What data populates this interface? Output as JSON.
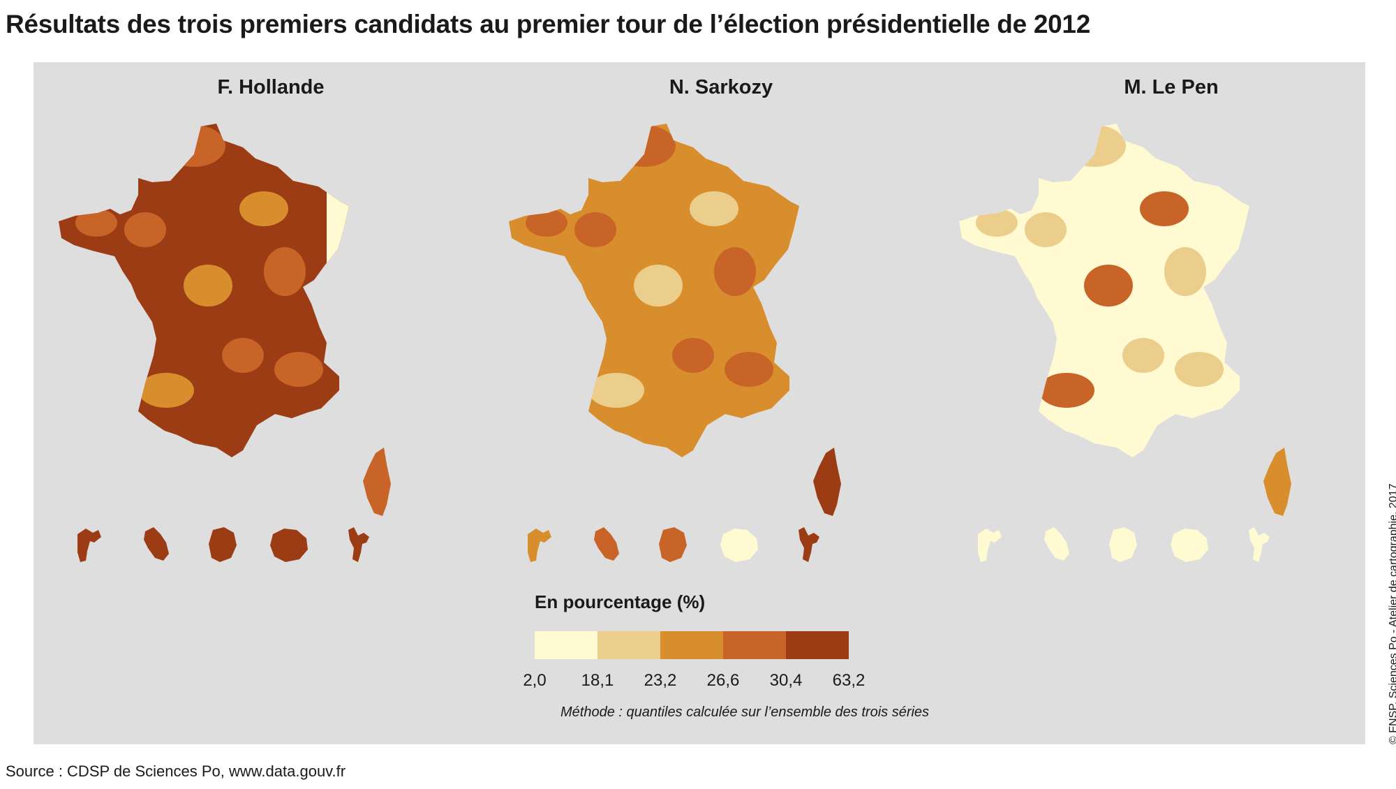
{
  "title": "Résultats des trois premiers candidats au premier tour de l’élection présidentielle de 2012",
  "candidates": [
    {
      "name": "F. Hollande",
      "dominant_class": 4,
      "secondary_class": 3,
      "tertiary_class": 2,
      "light_east": true,
      "corsica_class": 3,
      "overseas_classes": [
        4,
        4,
        4,
        4,
        4
      ]
    },
    {
      "name": "N. Sarkozy",
      "dominant_class": 2,
      "secondary_class": 3,
      "tertiary_class": 1,
      "light_east": false,
      "corsica_class": 4,
      "overseas_classes": [
        2,
        3,
        3,
        0,
        4
      ]
    },
    {
      "name": "M. Le Pen",
      "dominant_class": 0,
      "secondary_class": 1,
      "tertiary_class": 3,
      "light_east": false,
      "corsica_class": 2,
      "overseas_classes": [
        0,
        0,
        0,
        0,
        0
      ]
    }
  ],
  "legend": {
    "title": "En pourcentage (%)",
    "colors": [
      "#fffad2",
      "#ecce8c",
      "#d88e2c",
      "#c86428",
      "#9c3c14"
    ],
    "ticks": [
      "2,0",
      "18,1",
      "23,2",
      "26,6",
      "30,4",
      "63,2"
    ],
    "note": "Méthode : quantiles calculée sur l’ensemble des trois séries"
  },
  "source": "Source : CDSP de Sciences Po, www.data.gouv.fr",
  "credit": "© FNSP. Sciences Po - Atelier de cartographie, 2017"
}
